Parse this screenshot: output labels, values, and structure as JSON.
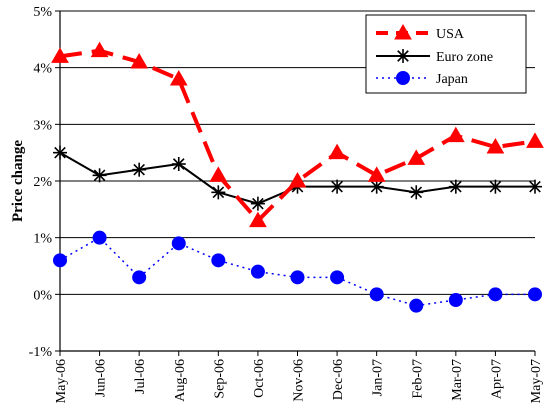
{
  "chart_data": {
    "type": "line",
    "title": "",
    "xlabel": "",
    "ylabel": "Price change",
    "categories": [
      "May-06",
      "Jun-06",
      "Jul-06",
      "Aug-06",
      "Sep-06",
      "Oct-06",
      "Nov-06",
      "Dec-06",
      "Jan-07",
      "Feb-07",
      "Mar-07",
      "Apr-07",
      "May-07"
    ],
    "ylim": [
      -1,
      5
    ],
    "yticks": [
      -1,
      0,
      1,
      2,
      3,
      4,
      5
    ],
    "ytick_labels": [
      "-1%",
      "0%",
      "1%",
      "2%",
      "3%",
      "4%",
      "5%"
    ],
    "grid": "horizontal",
    "legend_position": "top-right",
    "series": [
      {
        "name": "USA",
        "color": "#ff0000",
        "line_style": "long-dash",
        "marker": "triangle",
        "values": [
          4.2,
          4.3,
          4.1,
          3.8,
          2.1,
          1.3,
          2.0,
          2.5,
          2.1,
          2.4,
          2.8,
          2.6,
          2.7
        ]
      },
      {
        "name": "Euro zone",
        "color": "#000000",
        "line_style": "solid",
        "marker": "asterisk",
        "values": [
          2.5,
          2.1,
          2.2,
          2.3,
          1.8,
          1.6,
          1.9,
          1.9,
          1.9,
          1.8,
          1.9,
          1.9,
          1.9
        ]
      },
      {
        "name": "Japan",
        "color": "#0000ff",
        "line_style": "dotted",
        "marker": "circle",
        "values": [
          0.6,
          1.0,
          0.3,
          0.9,
          0.6,
          0.4,
          0.3,
          0.3,
          0.0,
          -0.2,
          -0.1,
          0.0,
          0.0
        ]
      }
    ]
  }
}
